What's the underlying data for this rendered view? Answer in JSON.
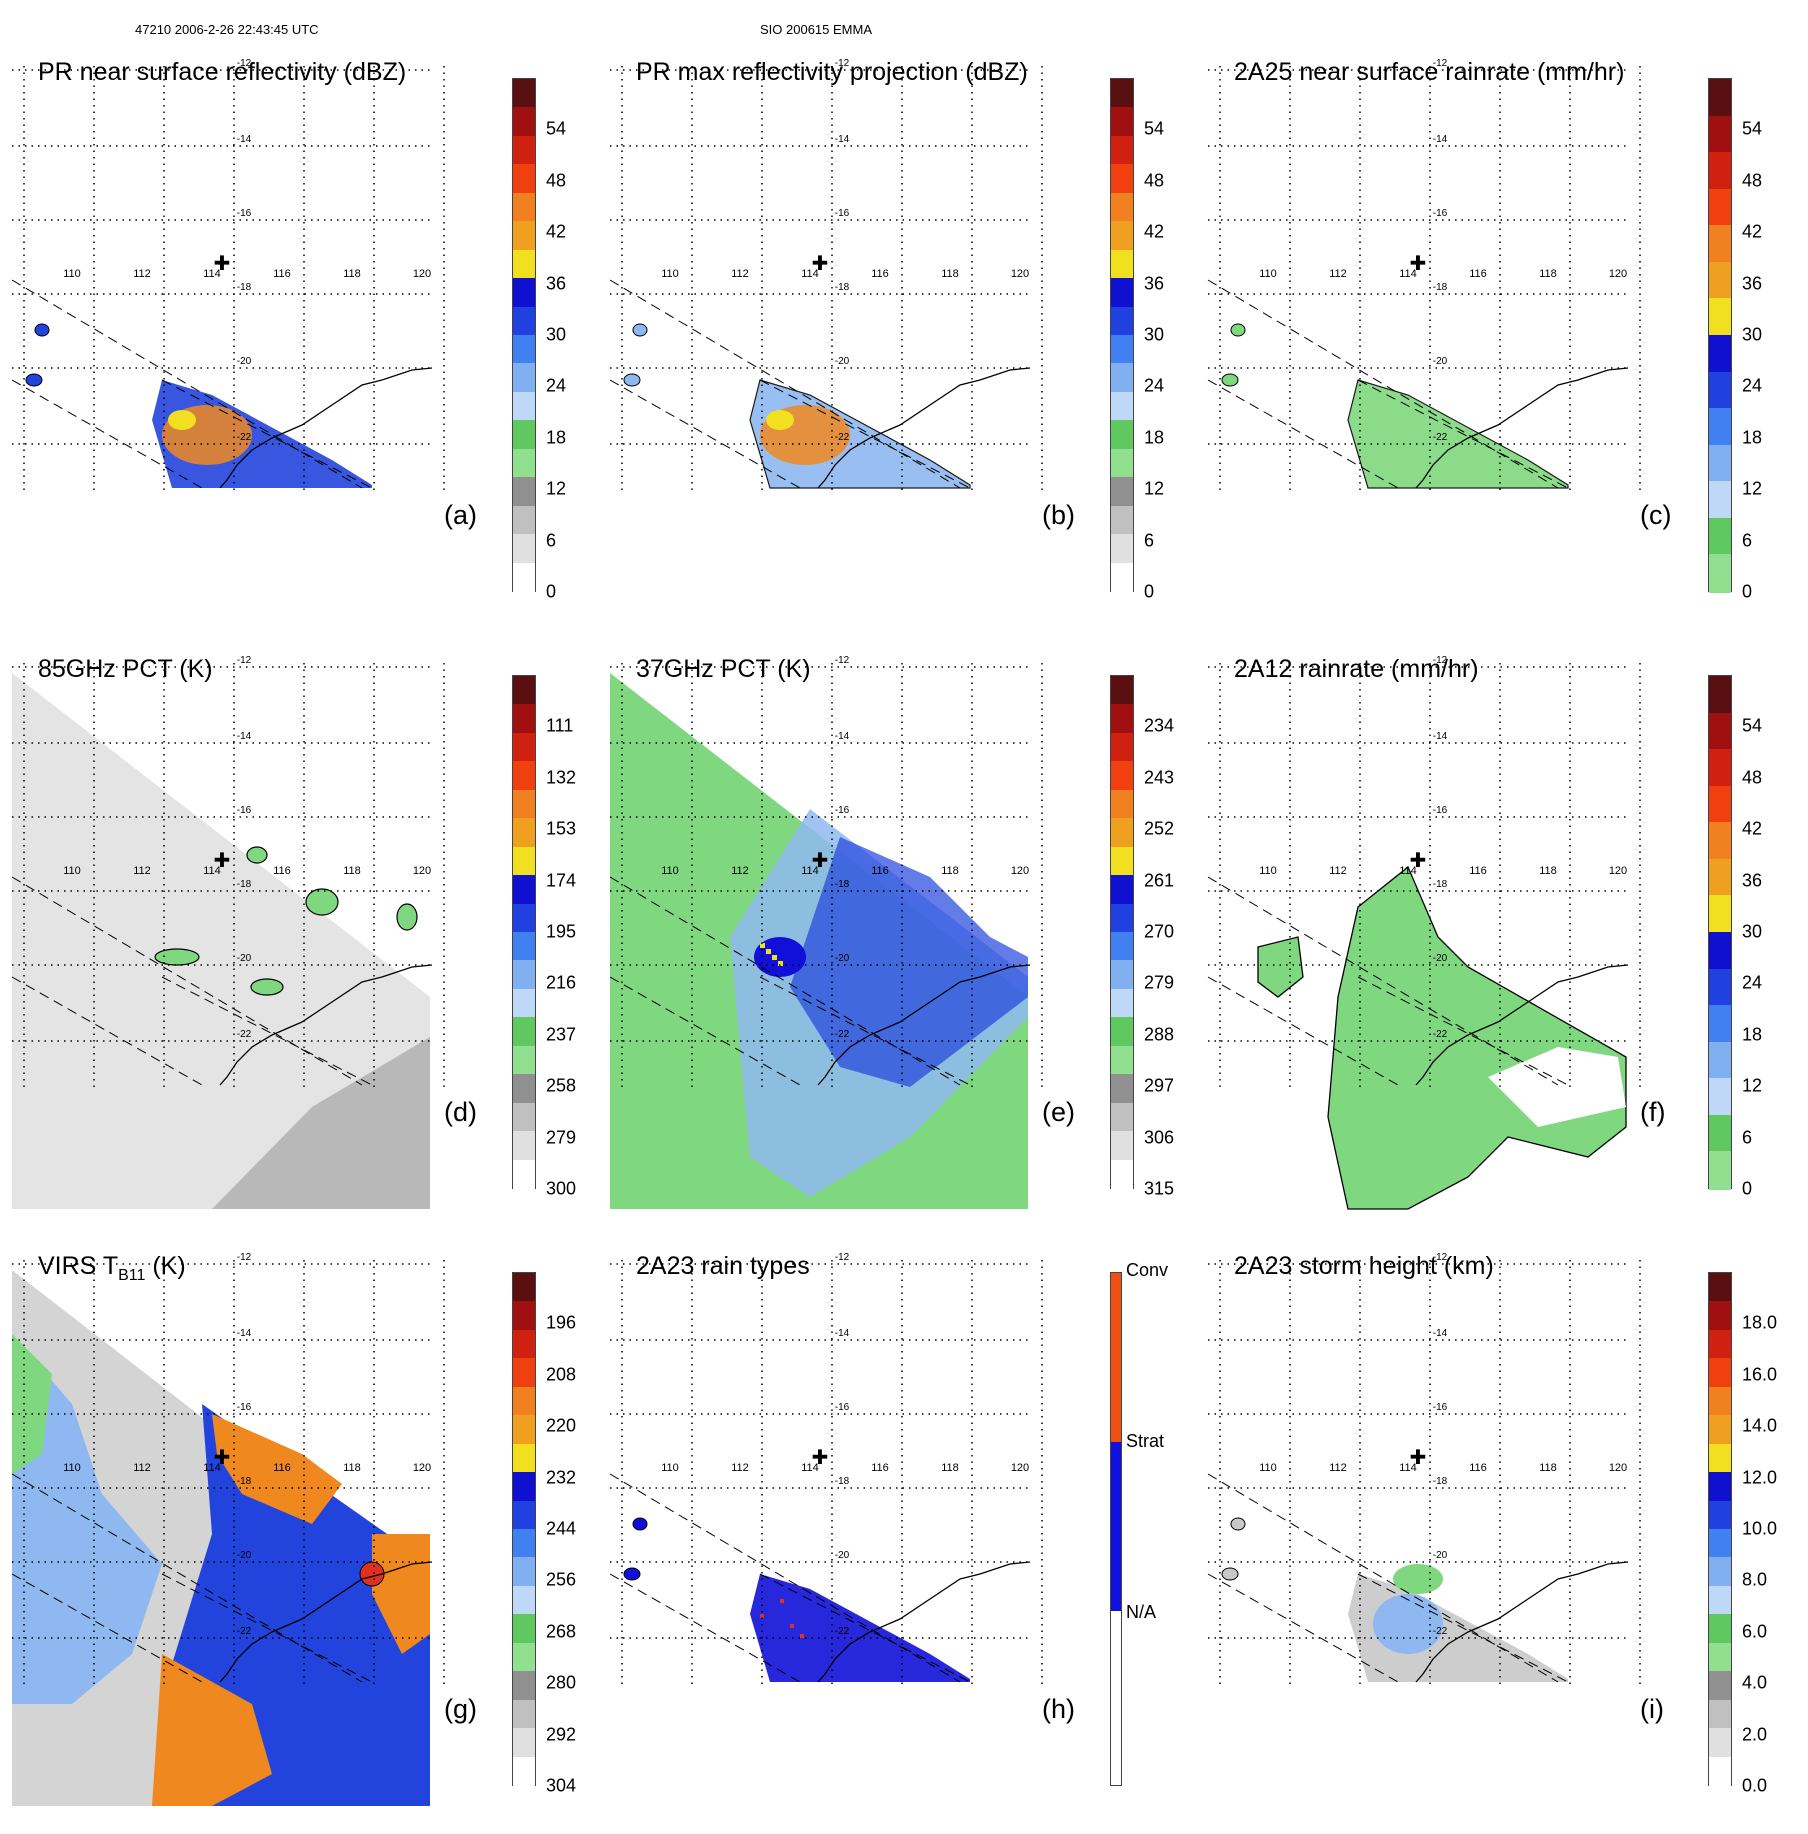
{
  "header": {
    "left": "47210 2006-2-26 22:43:45 UTC",
    "center": "SIO 200615 EMMA"
  },
  "map": {
    "lat_labels": [
      "-12",
      "-14",
      "-16",
      "-18",
      "-20",
      "-22"
    ],
    "lon_labels": [
      "110",
      "112",
      "114",
      "116",
      "118",
      "120"
    ],
    "marker": "✚"
  },
  "panels": [
    {
      "id": "a",
      "title": "PR near surface reflectivity (dBZ)",
      "label": "(a)",
      "palette": "refl",
      "ticks": [
        "54",
        "48",
        "42",
        "36",
        "30",
        "24",
        "18",
        "12",
        "6",
        "0"
      ]
    },
    {
      "id": "b",
      "title": "PR max reflectivity projection (dBZ)",
      "label": "(b)",
      "palette": "refl",
      "ticks": [
        "54",
        "48",
        "42",
        "36",
        "30",
        "24",
        "18",
        "12",
        "6",
        "0"
      ]
    },
    {
      "id": "c",
      "title": "2A25 near surface rainrate (mm/hr)",
      "label": "(c)",
      "palette": "rain",
      "ticks": [
        "54",
        "48",
        "42",
        "36",
        "30",
        "24",
        "18",
        "12",
        "6",
        "0"
      ]
    },
    {
      "id": "d",
      "title": "85GHz PCT (K)",
      "label": "(d)",
      "palette": "refl",
      "ticks": [
        "111",
        "132",
        "153",
        "174",
        "195",
        "216",
        "237",
        "258",
        "279",
        "300"
      ]
    },
    {
      "id": "e",
      "title": "37GHz PCT (K)",
      "label": "(e)",
      "palette": "refl",
      "ticks": [
        "234",
        "243",
        "252",
        "261",
        "270",
        "279",
        "288",
        "297",
        "306",
        "315"
      ]
    },
    {
      "id": "f",
      "title": "2A12 rainrate (mm/hr)",
      "label": "(f)",
      "palette": "rain",
      "ticks": [
        "54",
        "48",
        "42",
        "36",
        "30",
        "24",
        "18",
        "12",
        "6",
        "0"
      ]
    },
    {
      "id": "g",
      "title": "VIRS T",
      "title_sub": "B11",
      "title_suffix": " (K)",
      "label": "(g)",
      "palette": "refl",
      "ticks": [
        "196",
        "208",
        "220",
        "232",
        "244",
        "256",
        "268",
        "280",
        "292",
        "304"
      ]
    },
    {
      "id": "h",
      "title": "2A23 rain types",
      "label": "(h)",
      "palette": "types",
      "ticks": [
        "Conv",
        "Strat",
        "N/A"
      ]
    },
    {
      "id": "i",
      "title": "2A23 storm height (km)",
      "label": "(i)",
      "palette": "refl",
      "ticks": [
        "18.0",
        "16.0",
        "14.0",
        "12.0",
        "10.0",
        "8.0",
        "6.0",
        "4.0",
        "2.0",
        "0.0"
      ]
    }
  ],
  "colors": {
    "green": "#7fd87f",
    "lightblue": "#8fb8f0",
    "blue": "#2244dd",
    "darkblue": "#1010d8",
    "yellow": "#f0e020",
    "orange": "#f08820",
    "red": "#e03020",
    "gray": "#c8c8c8"
  }
}
